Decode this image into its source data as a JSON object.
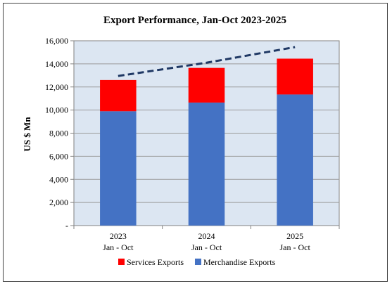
{
  "chart_data": {
    "type": "bar",
    "stacked": true,
    "title": "Export Performance, Jan-Oct  2023-2025",
    "ylabel": "US $ Mn",
    "ylim": [
      0,
      16000
    ],
    "yticks": [
      0,
      2000,
      4000,
      6000,
      8000,
      10000,
      12000,
      14000,
      16000
    ],
    "ytick_labels": [
      "-",
      "2,000",
      "4,000",
      "6,000",
      "8,000",
      "10,000",
      "12,000",
      "14,000",
      "16,000"
    ],
    "categories": [
      {
        "year": "2023",
        "period": "Jan - Oct"
      },
      {
        "year": "2024",
        "period": "Jan - Oct"
      },
      {
        "year": "2025",
        "period": "Jan - Oct"
      }
    ],
    "series": [
      {
        "name": "Merchandise Exports",
        "color": "#4472C4",
        "values": [
          9900,
          10650,
          11350
        ]
      },
      {
        "name": "Services Exports",
        "color": "#FF0000",
        "values": [
          2700,
          3000,
          3100
        ]
      }
    ],
    "trendline": {
      "style": "dashed",
      "color": "#1F3864",
      "values": [
        12950,
        14100,
        15450
      ]
    },
    "plot_background": "#DCE6F2",
    "grid": true,
    "legend": {
      "position": "bottom",
      "order": [
        "Services Exports",
        "Merchandise Exports"
      ]
    }
  }
}
